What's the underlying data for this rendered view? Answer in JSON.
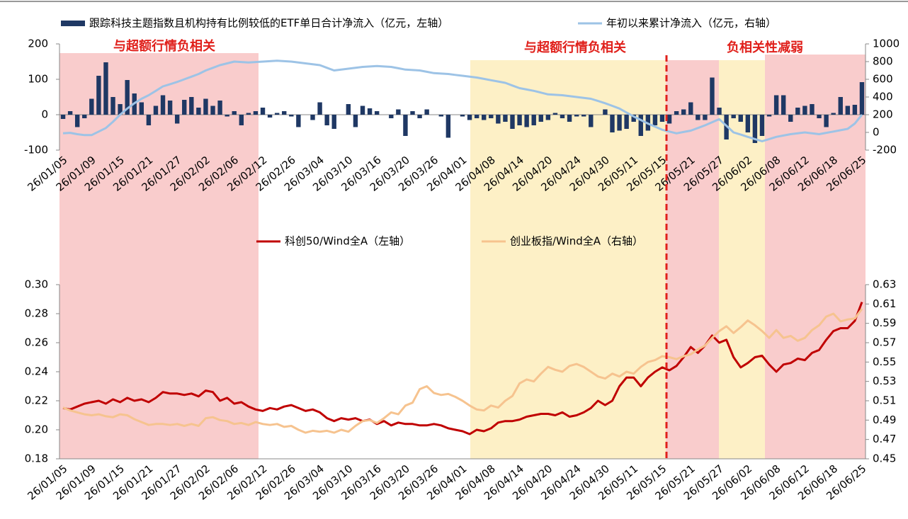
{
  "chart_data": [
    {
      "type": "bar",
      "categories": [
        "26/01/05",
        null,
        null,
        null,
        "26/01/09",
        null,
        null,
        null,
        "26/01/15",
        null,
        null,
        null,
        "26/01/21",
        null,
        null,
        null,
        "26/01/27",
        null,
        null,
        null,
        "26/02/02",
        null,
        null,
        null,
        "26/02/06",
        null,
        null,
        null,
        "26/02/12",
        null,
        null,
        null,
        "26/02/26",
        null,
        null,
        null,
        "26/03/04",
        null,
        null,
        null,
        "26/03/10",
        null,
        null,
        null,
        "26/03/16",
        null,
        null,
        null,
        "26/03/20",
        null,
        null,
        null,
        "26/03/26",
        null,
        null,
        null,
        "26/04/01",
        null,
        null,
        null,
        "26/04/08",
        null,
        null,
        null,
        "26/04/14",
        null,
        null,
        null,
        "26/04/20",
        null,
        null,
        null,
        "26/04/24",
        null,
        null,
        null,
        "26/04/30",
        null,
        null,
        null,
        "26/05/11",
        null,
        null,
        null,
        "26/05/15",
        null,
        null,
        null,
        "26/05/21",
        null,
        null,
        null,
        "26/05/27",
        null,
        null,
        null,
        "26/06/02",
        null,
        null,
        null,
        "26/06/08",
        null,
        null,
        null,
        "26/06/12",
        null,
        null,
        null,
        "26/06/18",
        null,
        null,
        null,
        "26/06/25"
      ],
      "series": [
        {
          "name": "跟踪科技主题指数且机构持有比例较低的ETF单日合计净流入（亿元，左轴）",
          "color": "#1f3864",
          "values": [
            -12,
            10,
            -35,
            -10,
            45,
            110,
            148,
            50,
            30,
            98,
            60,
            35,
            -30,
            25,
            55,
            40,
            -25,
            42,
            50,
            20,
            45,
            25,
            40,
            -5,
            10,
            -30,
            5,
            10,
            20,
            -8,
            5,
            10,
            -5,
            -35,
            0,
            -15,
            35,
            -30,
            -40,
            0,
            30,
            -35,
            25,
            18,
            10,
            0,
            -10,
            15,
            -60,
            10,
            -10,
            15,
            0,
            -5,
            -65,
            0,
            -5,
            -15,
            -10,
            -15,
            -10,
            -25,
            -20,
            -40,
            -30,
            -35,
            -30,
            -20,
            -15,
            5,
            -10,
            -20,
            -5,
            -5,
            -35,
            0,
            15,
            -50,
            -45,
            -40,
            -20,
            -60,
            -45,
            -30,
            -20,
            -25,
            10,
            15,
            35,
            -15,
            -15,
            105,
            20,
            -70,
            -10,
            -20,
            -50,
            -80,
            -60,
            -5,
            55,
            55,
            -20,
            20,
            25,
            30,
            -10,
            -35,
            5,
            50,
            25,
            28,
            92
          ]
        },
        {
          "name": "年初以来累计净流入（亿元，右轴）",
          "color": "#9dc3e6",
          "type": "line",
          "axis": "y2",
          "values": [
            -10,
            -5,
            -20,
            -30,
            -30,
            10,
            50,
            120,
            200,
            270,
            330,
            380,
            420,
            470,
            520,
            545,
            570,
            600,
            630,
            660,
            700,
            730,
            760,
            780,
            800,
            795,
            790,
            795,
            800,
            805,
            810,
            805,
            800,
            790,
            780,
            770,
            760,
            730,
            700,
            710,
            720,
            730,
            740,
            745,
            750,
            745,
            740,
            725,
            710,
            705,
            700,
            685,
            670,
            665,
            660,
            650,
            640,
            630,
            620,
            605,
            590,
            575,
            560,
            530,
            500,
            485,
            470,
            450,
            430,
            425,
            420,
            410,
            400,
            390,
            380,
            355,
            330,
            300,
            270,
            225,
            180,
            140,
            100,
            65,
            30,
            10,
            -10,
            5,
            20,
            50,
            80,
            115,
            150,
            75,
            0,
            -25,
            -50,
            -75,
            -100,
            -75,
            -50,
            -35,
            -20,
            -10,
            0,
            -10,
            -20,
            -5,
            10,
            25,
            40,
            100,
            200
          ]
        }
      ],
      "ylim": [
        -100,
        200
      ],
      "yticks": [
        -100,
        0,
        100,
        200
      ],
      "y2lim": [
        -200,
        1000
      ],
      "y2ticks": [
        -200,
        0,
        200,
        400,
        600,
        800,
        1000
      ]
    },
    {
      "type": "line",
      "categories": [
        "26/01/05",
        null,
        null,
        null,
        "26/01/09",
        null,
        null,
        null,
        "26/01/15",
        null,
        null,
        null,
        "26/01/21",
        null,
        null,
        null,
        "26/01/27",
        null,
        null,
        null,
        "26/02/02",
        null,
        null,
        null,
        "26/02/06",
        null,
        null,
        null,
        "26/02/12",
        null,
        null,
        null,
        "26/02/26",
        null,
        null,
        null,
        "26/03/04",
        null,
        null,
        null,
        "26/03/10",
        null,
        null,
        null,
        "26/03/16",
        null,
        null,
        null,
        "26/03/20",
        null,
        null,
        null,
        "26/03/26",
        null,
        null,
        null,
        "26/04/01",
        null,
        null,
        null,
        "26/04/08",
        null,
        null,
        null,
        "26/04/14",
        null,
        null,
        null,
        "26/04/20",
        null,
        null,
        null,
        "26/04/24",
        null,
        null,
        null,
        "26/04/30",
        null,
        null,
        null,
        "26/05/11",
        null,
        null,
        null,
        "26/05/15",
        null,
        null,
        null,
        "26/05/21",
        null,
        null,
        null,
        "26/05/27",
        null,
        null,
        null,
        "26/06/02",
        null,
        null,
        null,
        "26/06/08",
        null,
        null,
        null,
        "26/06/12",
        null,
        null,
        null,
        "26/06/18",
        null,
        null,
        null,
        "26/06/25"
      ],
      "series": [
        {
          "name": "科创50/Wind全A（左轴）",
          "color": "#c00000",
          "values": [
            0.215,
            0.214,
            0.216,
            0.218,
            0.219,
            0.22,
            0.218,
            0.221,
            0.219,
            0.222,
            0.22,
            0.221,
            0.219,
            0.222,
            0.226,
            0.225,
            0.225,
            0.224,
            0.225,
            0.223,
            0.227,
            0.226,
            0.22,
            0.222,
            0.218,
            0.219,
            0.216,
            0.214,
            0.213,
            0.215,
            0.214,
            0.216,
            0.217,
            0.215,
            0.213,
            0.214,
            0.212,
            0.208,
            0.206,
            0.208,
            0.207,
            0.208,
            0.206,
            0.207,
            0.204,
            0.206,
            0.203,
            0.205,
            0.204,
            0.204,
            0.203,
            0.203,
            0.204,
            0.203,
            0.201,
            0.2,
            0.199,
            0.197,
            0.2,
            0.199,
            0.201,
            0.205,
            0.206,
            0.206,
            0.207,
            0.209,
            0.21,
            0.211,
            0.211,
            0.21,
            0.212,
            0.209,
            0.21,
            0.212,
            0.215,
            0.22,
            0.217,
            0.22,
            0.23,
            0.236,
            0.236,
            0.23,
            0.236,
            0.24,
            0.243,
            0.241,
            0.244,
            0.25,
            0.257,
            0.253,
            0.258,
            0.265,
            0.26,
            0.262,
            0.25,
            0.243,
            0.246,
            0.25,
            0.251,
            0.245,
            0.24,
            0.245,
            0.246,
            0.249,
            0.248,
            0.253,
            0.255,
            0.262,
            0.268,
            0.27,
            0.27,
            0.275,
            0.288
          ]
        },
        {
          "name": "创业板指/Wind全A（右轴）",
          "color": "#f6c38f",
          "axis": "y2",
          "values": [
            0.503,
            0.5,
            0.498,
            0.496,
            0.495,
            0.496,
            0.494,
            0.493,
            0.496,
            0.495,
            0.491,
            0.488,
            0.485,
            0.486,
            0.486,
            0.485,
            0.486,
            0.484,
            0.486,
            0.484,
            0.492,
            0.493,
            0.49,
            0.489,
            0.486,
            0.487,
            0.485,
            0.488,
            0.486,
            0.485,
            0.486,
            0.483,
            0.484,
            0.48,
            0.477,
            0.479,
            0.478,
            0.479,
            0.477,
            0.48,
            0.478,
            0.484,
            0.489,
            0.49,
            0.487,
            0.492,
            0.498,
            0.496,
            0.505,
            0.508,
            0.522,
            0.525,
            0.518,
            0.516,
            0.517,
            0.514,
            0.51,
            0.505,
            0.501,
            0.5,
            0.505,
            0.503,
            0.51,
            0.515,
            0.528,
            0.532,
            0.53,
            0.538,
            0.545,
            0.542,
            0.54,
            0.546,
            0.548,
            0.545,
            0.54,
            0.535,
            0.533,
            0.538,
            0.535,
            0.54,
            0.538,
            0.545,
            0.55,
            0.552,
            0.556,
            0.555,
            0.553,
            0.556,
            0.558,
            0.563,
            0.567,
            0.575,
            0.582,
            0.587,
            0.58,
            0.586,
            0.593,
            0.588,
            0.582,
            0.575,
            0.583,
            0.575,
            0.577,
            0.572,
            0.575,
            0.583,
            0.588,
            0.597,
            0.6,
            0.592,
            0.594,
            0.595,
            0.605
          ]
        }
      ],
      "ylim": [
        0.18,
        0.3
      ],
      "yticks": [
        0.18,
        {
          "value": 0.2,
          "label": "0.20"
        },
        0.22,
        0.24,
        0.26,
        0.28,
        {
          "value": 0.3,
          "label": "0.30"
        }
      ],
      "y2lim": [
        0.45,
        0.63
      ],
      "y2ticks": [
        0.45,
        0.47,
        0.49,
        0.51,
        0.53,
        0.55,
        0.57,
        0.59,
        0.61,
        0.63
      ]
    }
  ],
  "annotations": [
    "与超额行情负相关",
    "与超额行情负相关",
    "负相关性减弱"
  ]
}
